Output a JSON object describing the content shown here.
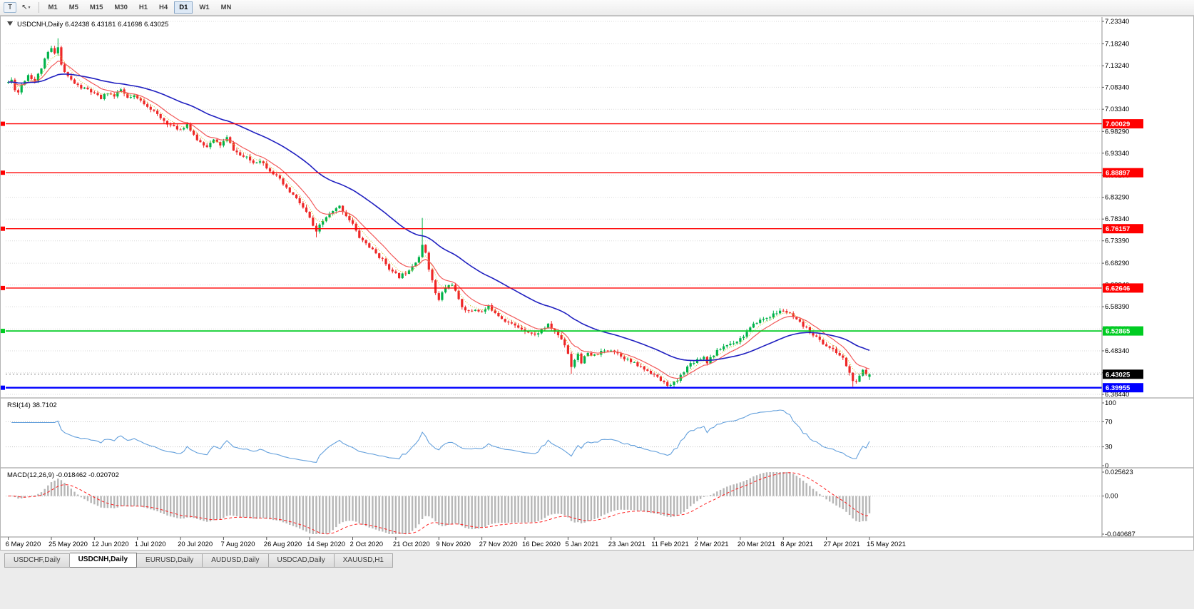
{
  "toolbar": {
    "t_label": "T",
    "cursor_tool_caret": "▾",
    "timeframes": [
      "M1",
      "M5",
      "M15",
      "M30",
      "H1",
      "H4",
      "D1",
      "W1",
      "MN"
    ],
    "selected_timeframe": "D1"
  },
  "chart": {
    "title": "USDCNH,Daily",
    "ohlc_text": "6.42438 6.43181 6.41698 6.43025",
    "open": "6.42438",
    "high": "6.43181",
    "low": "6.41698",
    "close": "6.43025",
    "y_axis_ticks": [
      "7.23340",
      "7.18240",
      "7.13240",
      "7.08340",
      "7.03340",
      "6.98290",
      "6.93340",
      "6.88290",
      "6.83290",
      "6.78340",
      "6.73390",
      "6.68290",
      "6.63340",
      "6.58390",
      "6.53340",
      "6.48340",
      "6.43340",
      "6.38440"
    ],
    "level_lines": [
      {
        "label": "7.00029",
        "value": 7.00029,
        "color": "#ff0000",
        "width": 1.4
      },
      {
        "label": "6.88897",
        "value": 6.88897,
        "color": "#ff0000",
        "width": 1.4
      },
      {
        "label": "6.76157",
        "value": 6.76157,
        "color": "#ff0000",
        "width": 1.4
      },
      {
        "label": "6.62646",
        "value": 6.62646,
        "color": "#ff0000",
        "width": 1.4
      },
      {
        "label": "6.52865",
        "value": 6.52865,
        "color": "#00cc22",
        "width": 1.8
      },
      {
        "label": "6.39955",
        "value": 6.39955,
        "color": "#0000ff",
        "width": 2.4
      }
    ],
    "current_price": {
      "label": "6.43025",
      "value": 6.43025,
      "tag_color": "#000000"
    }
  },
  "rsi_panel": {
    "label": "RSI(14)",
    "value": "38.7102",
    "levels": [
      {
        "label": "100",
        "value": 100
      },
      {
        "label": "70",
        "value": 70
      },
      {
        "label": "30",
        "value": 30
      },
      {
        "label": "0",
        "value": 0
      }
    ],
    "line_color": "#64a0dc"
  },
  "macd_panel": {
    "label": "MACD(12,26,9)",
    "values": "-0.018462 -0.020702",
    "scale": [
      {
        "label": "0.025623",
        "value": 0.025623
      },
      {
        "label": "0.00",
        "value": 0
      },
      {
        "label": "-0.040687",
        "value": -0.040687
      }
    ],
    "histogram_color": "#b6b6b6",
    "signal_color": "#ff2020"
  },
  "x_axis": {
    "labels": [
      "6 May 2020",
      "25 May 2020",
      "12 Jun 2020",
      "1 Jul 2020",
      "20 Jul 2020",
      "7 Aug 2020",
      "26 Aug 2020",
      "14 Sep 2020",
      "2 Oct 2020",
      "21 Oct 2020",
      "9 Nov 2020",
      "27 Nov 2020",
      "16 Dec 2020",
      "5 Jan 2021",
      "23 Jan 2021",
      "11 Feb 2021",
      "2 Mar 2021",
      "20 Mar 2021",
      "8 Apr 2021",
      "27 Apr 2021",
      "15 May 2021"
    ],
    "bars_per_label": 13
  },
  "tabs": {
    "items": [
      {
        "label": "USDCHF,Daily",
        "active": false
      },
      {
        "label": "USDCNH,Daily",
        "active": true
      },
      {
        "label": "EURUSD,Daily",
        "active": false
      },
      {
        "label": "AUDUSD,Daily",
        "active": false
      },
      {
        "label": "USDCAD,Daily",
        "active": false
      },
      {
        "label": "XAUUSD,H1",
        "active": false
      }
    ]
  },
  "chart_data": {
    "type": "candlestick",
    "symbol": "USDCNH",
    "timeframe": "D1",
    "num_bars": 261,
    "date_start": "6 May 2020",
    "date_end": "15 May 2021",
    "seed": 11,
    "price_axis": {
      "top": 7.2334,
      "bottom": 6.3844
    },
    "last_candle": {
      "open": 6.42438,
      "high": 6.43181,
      "low": 6.41698,
      "close": 6.43025
    },
    "anchor_points": [
      [
        0,
        7.095
      ],
      [
        1,
        7.1
      ],
      [
        2,
        7.08
      ],
      [
        3,
        7.072
      ],
      [
        4,
        7.09
      ],
      [
        5,
        7.1
      ],
      [
        6,
        7.112
      ],
      [
        7,
        7.105
      ],
      [
        8,
        7.098
      ],
      [
        9,
        7.112
      ],
      [
        10,
        7.128
      ],
      [
        11,
        7.145
      ],
      [
        12,
        7.162
      ],
      [
        13,
        7.172
      ],
      [
        14,
        7.158
      ],
      [
        15,
        7.178
      ],
      [
        16,
        7.135
      ],
      [
        17,
        7.118
      ],
      [
        18,
        7.108
      ],
      [
        19,
        7.1
      ],
      [
        20,
        7.092
      ],
      [
        22,
        7.082
      ],
      [
        24,
        7.078
      ],
      [
        26,
        7.068
      ],
      [
        28,
        7.058
      ],
      [
        30,
        7.072
      ],
      [
        32,
        7.062
      ],
      [
        34,
        7.078
      ],
      [
        36,
        7.058
      ],
      [
        38,
        7.062
      ],
      [
        40,
        7.052
      ],
      [
        42,
        7.042
      ],
      [
        44,
        7.028
      ],
      [
        46,
        7.012
      ],
      [
        48,
        7.002
      ],
      [
        50,
        6.992
      ],
      [
        52,
        6.988
      ],
      [
        54,
        7.0
      ],
      [
        56,
        6.972
      ],
      [
        58,
        6.958
      ],
      [
        60,
        6.95
      ],
      [
        62,
        6.962
      ],
      [
        64,
        6.952
      ],
      [
        66,
        6.968
      ],
      [
        68,
        6.942
      ],
      [
        70,
        6.928
      ],
      [
        72,
        6.922
      ],
      [
        74,
        6.912
      ],
      [
        76,
        6.918
      ],
      [
        78,
        6.902
      ],
      [
        80,
        6.888
      ],
      [
        82,
        6.872
      ],
      [
        84,
        6.852
      ],
      [
        86,
        6.838
      ],
      [
        88,
        6.82
      ],
      [
        90,
        6.798
      ],
      [
        91,
        6.785
      ],
      [
        92,
        6.768
      ],
      [
        93,
        6.752
      ],
      [
        94,
        6.768
      ],
      [
        95,
        6.778
      ],
      [
        96,
        6.788
      ],
      [
        98,
        6.8
      ],
      [
        100,
        6.812
      ],
      [
        102,
        6.792
      ],
      [
        104,
        6.772
      ],
      [
        105,
        6.755
      ],
      [
        106,
        6.742
      ],
      [
        108,
        6.728
      ],
      [
        110,
        6.712
      ],
      [
        112,
        6.698
      ],
      [
        114,
        6.682
      ],
      [
        116,
        6.662
      ],
      [
        118,
        6.652
      ],
      [
        120,
        6.662
      ],
      [
        122,
        6.678
      ],
      [
        124,
        6.698
      ],
      [
        125,
        6.722
      ],
      [
        126,
        6.708
      ],
      [
        127,
        6.672
      ],
      [
        128,
        6.642
      ],
      [
        129,
        6.615
      ],
      [
        130,
        6.598
      ],
      [
        131,
        6.615
      ],
      [
        132,
        6.628
      ],
      [
        134,
        6.636
      ],
      [
        135,
        6.618
      ],
      [
        136,
        6.598
      ],
      [
        137,
        6.585
      ],
      [
        139,
        6.572
      ],
      [
        141,
        6.578
      ],
      [
        143,
        6.572
      ],
      [
        145,
        6.584
      ],
      [
        147,
        6.572
      ],
      [
        149,
        6.558
      ],
      [
        151,
        6.548
      ],
      [
        153,
        6.54
      ],
      [
        155,
        6.534
      ],
      [
        157,
        6.527
      ],
      [
        159,
        6.519
      ],
      [
        161,
        6.532
      ],
      [
        163,
        6.542
      ],
      [
        165,
        6.527
      ],
      [
        167,
        6.51
      ],
      [
        168,
        6.498
      ],
      [
        169,
        6.478
      ],
      [
        170,
        6.448
      ],
      [
        171,
        6.464
      ],
      [
        172,
        6.478
      ],
      [
        173,
        6.458
      ],
      [
        174,
        6.468
      ],
      [
        175,
        6.478
      ],
      [
        176,
        6.47
      ],
      [
        178,
        6.477
      ],
      [
        180,
        6.483
      ],
      [
        182,
        6.487
      ],
      [
        184,
        6.478
      ],
      [
        186,
        6.468
      ],
      [
        188,
        6.458
      ],
      [
        190,
        6.45
      ],
      [
        192,
        6.442
      ],
      [
        194,
        6.435
      ],
      [
        196,
        6.422
      ],
      [
        198,
        6.41
      ],
      [
        200,
        6.404
      ],
      [
        202,
        6.416
      ],
      [
        204,
        6.438
      ],
      [
        206,
        6.455
      ],
      [
        208,
        6.464
      ],
      [
        210,
        6.47
      ],
      [
        211,
        6.458
      ],
      [
        212,
        6.468
      ],
      [
        214,
        6.482
      ],
      [
        216,
        6.494
      ],
      [
        218,
        6.5
      ],
      [
        220,
        6.506
      ],
      [
        222,
        6.518
      ],
      [
        224,
        6.534
      ],
      [
        226,
        6.55
      ],
      [
        228,
        6.556
      ],
      [
        230,
        6.562
      ],
      [
        232,
        6.57
      ],
      [
        234,
        6.576
      ],
      [
        236,
        6.566
      ],
      [
        238,
        6.552
      ],
      [
        240,
        6.54
      ],
      [
        242,
        6.528
      ],
      [
        244,
        6.514
      ],
      [
        246,
        6.5
      ],
      [
        248,
        6.49
      ],
      [
        250,
        6.48
      ],
      [
        252,
        6.466
      ],
      [
        253,
        6.45
      ],
      [
        254,
        6.432
      ],
      [
        255,
        6.416
      ],
      [
        256,
        6.41
      ],
      [
        257,
        6.424
      ],
      [
        258,
        6.44
      ],
      [
        259,
        6.43
      ],
      [
        260,
        6.43025
      ]
    ],
    "spikes": [
      {
        "day": 15,
        "high": 7.195
      },
      {
        "day": 93,
        "low": 6.742
      },
      {
        "day": 125,
        "high": 6.786
      },
      {
        "day": 170,
        "low": 6.431
      },
      {
        "day": 200,
        "low": 6.398
      },
      {
        "day": 201,
        "low": 6.399
      },
      {
        "day": 255,
        "low": 6.402
      }
    ],
    "moving_averages": [
      {
        "period": 5,
        "color": "#d4c018",
        "width": 1,
        "dash": "1,2"
      },
      {
        "period": 10,
        "color": "#f25a5a",
        "width": 1.2,
        "dash": ""
      },
      {
        "period": 40,
        "color": "#2020c0",
        "width": 1.6,
        "dash": ""
      }
    ],
    "candle_up_color": "#00b34a",
    "candle_down_color": "#ee2727",
    "rsi": {
      "period": 14,
      "current": 38.7102
    },
    "macd": {
      "fast": 12,
      "slow": 26,
      "signal_period": 9,
      "current": -0.018462,
      "current_signal": -0.020702
    }
  }
}
